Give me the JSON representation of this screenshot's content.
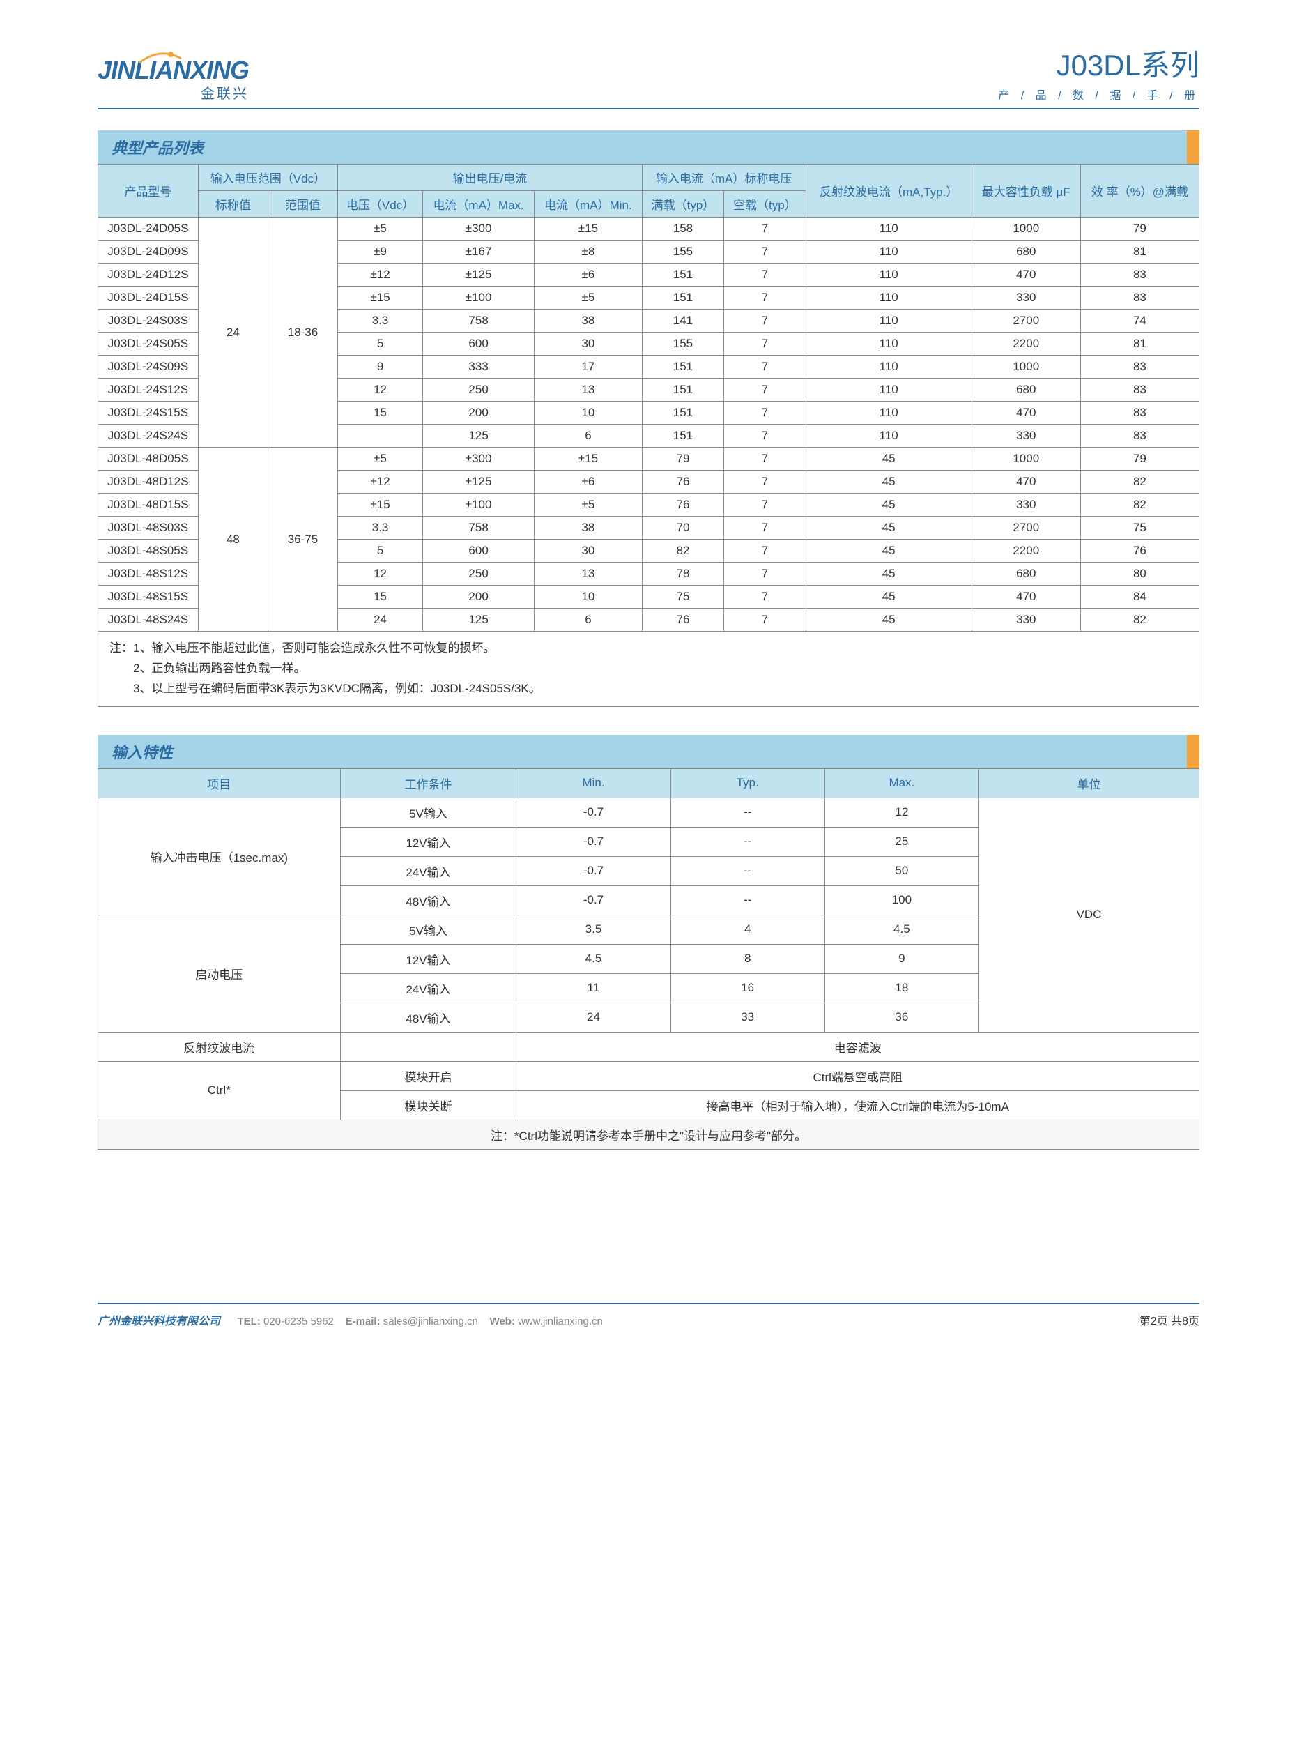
{
  "header": {
    "logo_main": "JINLIANXING",
    "logo_sub": "金联兴",
    "series_title": "J03DL系列",
    "series_sub": "产 / 品 / 数 / 据 / 手 / 册"
  },
  "section1_title": "典型产品列表",
  "product_headers": {
    "col_model": "产品型号",
    "col_vin": "输入电压范围（Vdc）",
    "col_vin_nom": "标称值",
    "col_vin_range": "范围值",
    "col_output": "输出电压/电流",
    "col_vout": "电压（Vdc）",
    "col_iout_max": "电流（mA）Max.",
    "col_iout_min": "电流（mA）Min.",
    "col_iin": "输入电流（mA）标称电压",
    "col_iin_full": "满载（typ）",
    "col_iin_no": "空载（typ）",
    "col_ripple": "反射纹波电流（mA,Typ.）",
    "col_cap": "最大容性负载 μF",
    "col_eff": "效 率（%）@满载"
  },
  "product_groups": [
    {
      "vin_nom": "24",
      "vin_range": "18-36",
      "rows": [
        {
          "model": "J03DL-24D05S",
          "vout": "±5",
          "imax": "±300",
          "imin": "±15",
          "full": "158",
          "no": "7",
          "rip": "110",
          "cap": "1000",
          "eff": "79"
        },
        {
          "model": "J03DL-24D09S",
          "vout": "±9",
          "imax": "±167",
          "imin": "±8",
          "full": "155",
          "no": "7",
          "rip": "110",
          "cap": "680",
          "eff": "81"
        },
        {
          "model": "J03DL-24D12S",
          "vout": "±12",
          "imax": "±125",
          "imin": "±6",
          "full": "151",
          "no": "7",
          "rip": "110",
          "cap": "470",
          "eff": "83"
        },
        {
          "model": "J03DL-24D15S",
          "vout": "±15",
          "imax": "±100",
          "imin": "±5",
          "full": "151",
          "no": "7",
          "rip": "110",
          "cap": "330",
          "eff": "83"
        },
        {
          "model": "J03DL-24S03S",
          "vout": "3.3",
          "imax": "758",
          "imin": "38",
          "full": "141",
          "no": "7",
          "rip": "110",
          "cap": "2700",
          "eff": "74"
        },
        {
          "model": "J03DL-24S05S",
          "vout": "5",
          "imax": "600",
          "imin": "30",
          "full": "155",
          "no": "7",
          "rip": "110",
          "cap": "2200",
          "eff": "81"
        },
        {
          "model": "J03DL-24S09S",
          "vout": "9",
          "imax": "333",
          "imin": "17",
          "full": "151",
          "no": "7",
          "rip": "110",
          "cap": "1000",
          "eff": "83"
        },
        {
          "model": "J03DL-24S12S",
          "vout": "12",
          "imax": "250",
          "imin": "13",
          "full": "151",
          "no": "7",
          "rip": "110",
          "cap": "680",
          "eff": "83"
        },
        {
          "model": "J03DL-24S15S",
          "vout": "15",
          "imax": "200",
          "imin": "10",
          "full": "151",
          "no": "7",
          "rip": "110",
          "cap": "470",
          "eff": "83"
        },
        {
          "model": "J03DL-24S24S",
          "vout": "",
          "imax": "125",
          "imin": "6",
          "full": "151",
          "no": "7",
          "rip": "110",
          "cap": "330",
          "eff": "83"
        }
      ]
    },
    {
      "vin_nom": "48",
      "vin_range": "36-75",
      "rows": [
        {
          "model": "J03DL-48D05S",
          "vout": "±5",
          "imax": "±300",
          "imin": "±15",
          "full": "79",
          "no": "7",
          "rip": "45",
          "cap": "1000",
          "eff": "79"
        },
        {
          "model": "J03DL-48D12S",
          "vout": "±12",
          "imax": "±125",
          "imin": "±6",
          "full": "76",
          "no": "7",
          "rip": "45",
          "cap": "470",
          "eff": "82"
        },
        {
          "model": "J03DL-48D15S",
          "vout": "±15",
          "imax": "±100",
          "imin": "±5",
          "full": "76",
          "no": "7",
          "rip": "45",
          "cap": "330",
          "eff": "82"
        },
        {
          "model": "J03DL-48S03S",
          "vout": "3.3",
          "imax": "758",
          "imin": "38",
          "full": "70",
          "no": "7",
          "rip": "45",
          "cap": "2700",
          "eff": "75"
        },
        {
          "model": "J03DL-48S05S",
          "vout": "5",
          "imax": "600",
          "imin": "30",
          "full": "82",
          "no": "7",
          "rip": "45",
          "cap": "2200",
          "eff": "76"
        },
        {
          "model": "J03DL-48S12S",
          "vout": "12",
          "imax": "250",
          "imin": "13",
          "full": "78",
          "no": "7",
          "rip": "45",
          "cap": "680",
          "eff": "80"
        },
        {
          "model": "J03DL-48S15S",
          "vout": "15",
          "imax": "200",
          "imin": "10",
          "full": "75",
          "no": "7",
          "rip": "45",
          "cap": "470",
          "eff": "84"
        },
        {
          "model": "J03DL-48S24S",
          "vout": "24",
          "imax": "125",
          "imin": "6",
          "full": "76",
          "no": "7",
          "rip": "45",
          "cap": "330",
          "eff": "82"
        }
      ]
    }
  ],
  "product_notes": [
    "注：1、输入电压不能超过此值，否则可能会造成永久性不可恢复的损坏。",
    "　　2、正负输出两路容性负载一样。",
    "　　3、以上型号在编码后面带3K表示为3KVDC隔离，例如：J03DL-24S05S/3K。"
  ],
  "section2_title": "输入特性",
  "input_headers": {
    "item": "项目",
    "cond": "工作条件",
    "min": "Min.",
    "typ": "Typ.",
    "max": "Max.",
    "unit": "单位"
  },
  "input_rows": {
    "surge_label": "输入冲击电压（1sec.max)",
    "startup_label": "启动电压",
    "surge": [
      {
        "cond": "5V输入",
        "min": "-0.7",
        "typ": "--",
        "max": "12"
      },
      {
        "cond": "12V输入",
        "min": "-0.7",
        "typ": "--",
        "max": "25"
      },
      {
        "cond": "24V输入",
        "min": "-0.7",
        "typ": "--",
        "max": "50"
      },
      {
        "cond": "48V输入",
        "min": "-0.7",
        "typ": "--",
        "max": "100"
      }
    ],
    "startup": [
      {
        "cond": "5V输入",
        "min": "3.5",
        "typ": "4",
        "max": "4.5"
      },
      {
        "cond": "12V输入",
        "min": "4.5",
        "typ": "8",
        "max": "9"
      },
      {
        "cond": "24V输入",
        "min": "11",
        "typ": "16",
        "max": "18"
      },
      {
        "cond": "48V输入",
        "min": "24",
        "typ": "33",
        "max": "36"
      }
    ],
    "unit": "VDC",
    "ripple_item": "反射纹波电流",
    "ripple_val": "电容滤波",
    "ctrl_item": "Ctrl*",
    "ctrl_on_cond": "模块开启",
    "ctrl_on_val": "Ctrl端悬空或高阻",
    "ctrl_off_cond": "模块关断",
    "ctrl_off_val": "接高电平（相对于输入地），使流入Ctrl端的电流为5-10mA",
    "note": "注：*Ctrl功能说明请参考本手册中之\"设计与应用参考\"部分。"
  },
  "footer": {
    "company": "广州金联兴科技有限公司",
    "tel_label": "TEL:",
    "tel": "020-6235 5962",
    "email_label": "E-mail:",
    "email": "sales@jinlianxing.cn",
    "web_label": "Web:",
    "web": "www.jinlianxing.cn",
    "page": "第2页 共8页"
  }
}
